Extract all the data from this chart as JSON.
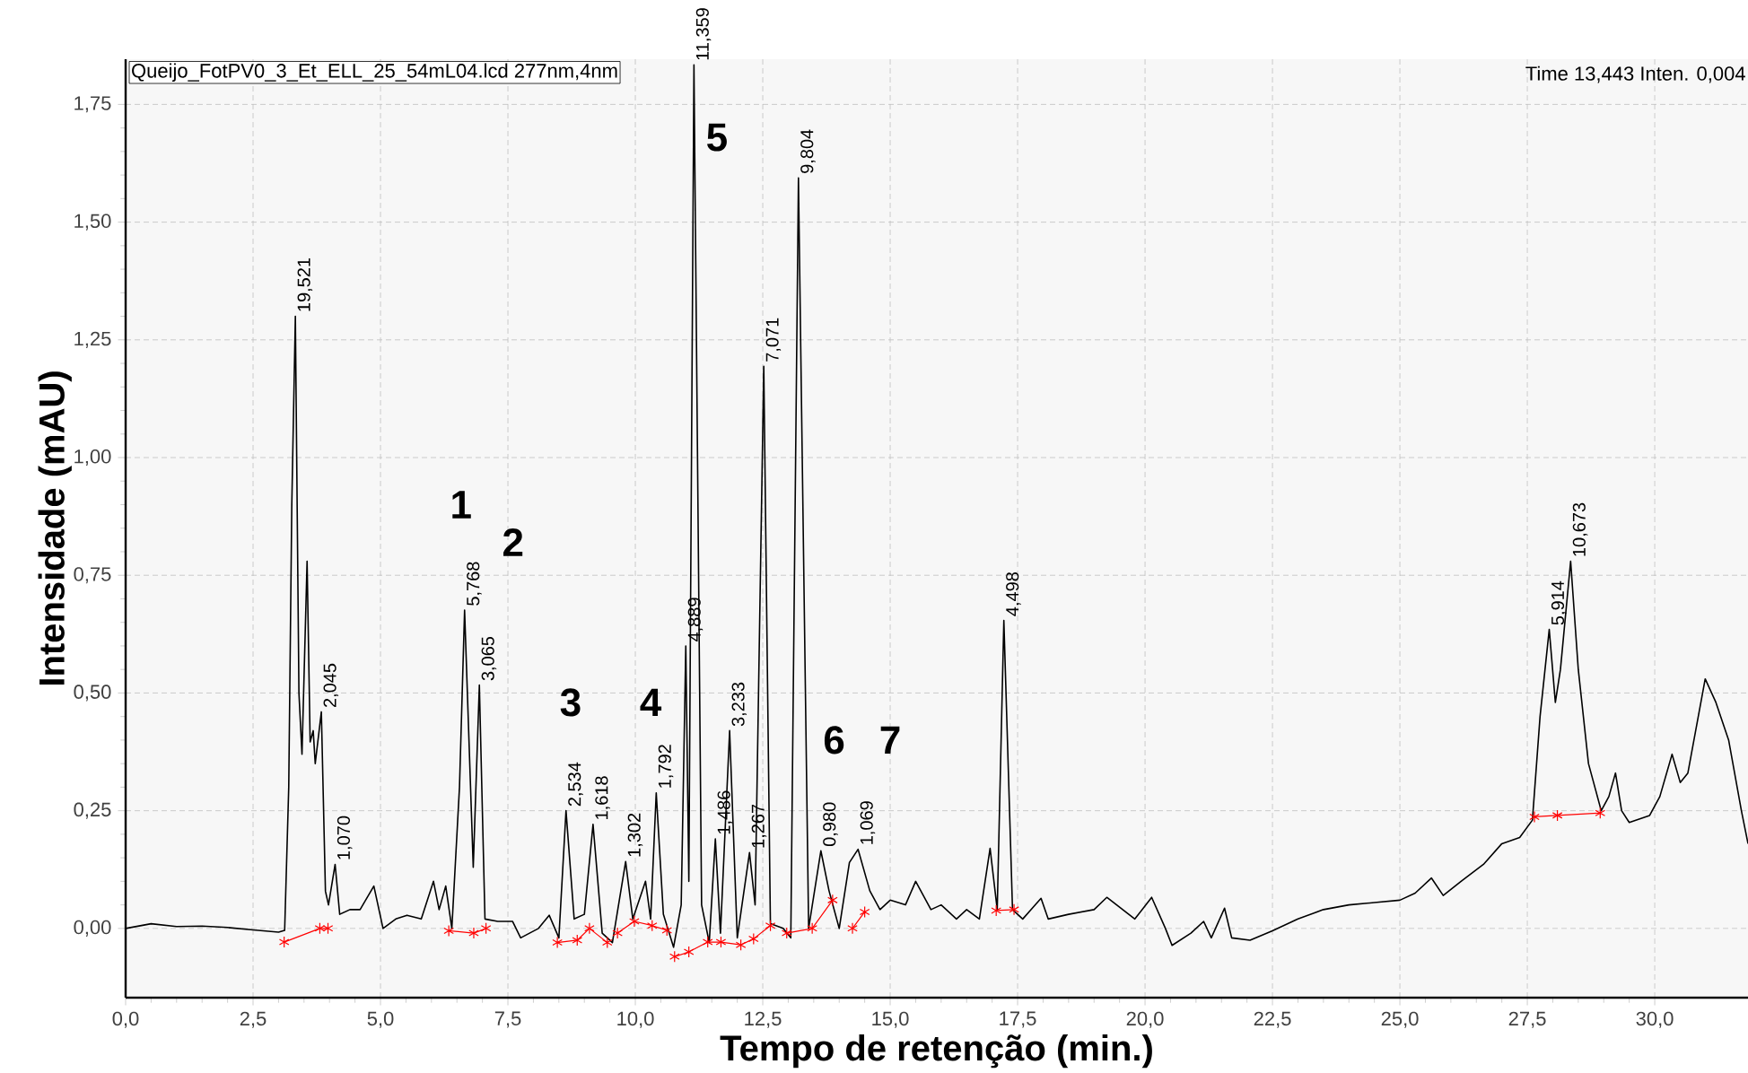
{
  "chart_data": {
    "type": "line",
    "xlabel": "Tempo de retenção (min.)",
    "ylabel": "Intensidade (mAU)",
    "xlim": [
      0,
      31.83
    ],
    "ylim": [
      -0.147,
      1.846
    ],
    "xticks": [
      {
        "value": 0,
        "label": "0,0"
      },
      {
        "value": 2.5,
        "label": "2,5"
      },
      {
        "value": 5,
        "label": "5,0"
      },
      {
        "value": 7.5,
        "label": "7,5"
      },
      {
        "value": 10,
        "label": "10,0"
      },
      {
        "value": 12.5,
        "label": "12,5"
      },
      {
        "value": 15,
        "label": "15,0"
      },
      {
        "value": 17.5,
        "label": "17,5"
      },
      {
        "value": 20,
        "label": "20,0"
      },
      {
        "value": 22.5,
        "label": "22,5"
      },
      {
        "value": 25,
        "label": "25,0"
      },
      {
        "value": 27.5,
        "label": "27,5"
      },
      {
        "value": 30,
        "label": "30,0"
      }
    ],
    "yticks": [
      {
        "value": 0,
        "label": "0,00"
      },
      {
        "value": 0.25,
        "label": "0,25"
      },
      {
        "value": 0.5,
        "label": "0,50"
      },
      {
        "value": 0.75,
        "label": "0,75"
      },
      {
        "value": 1,
        "label": "1,00"
      },
      {
        "value": 1.25,
        "label": "1,25"
      },
      {
        "value": 1.5,
        "label": "1,50"
      },
      {
        "value": 1.75,
        "label": "1,75"
      }
    ],
    "grid": true,
    "x": [
      0.0,
      0.5,
      1.0,
      1.5,
      2.0,
      2.5,
      3.0,
      3.12,
      3.2,
      3.26,
      3.33,
      3.4,
      3.46,
      3.56,
      3.62,
      3.68,
      3.72,
      3.84,
      3.92,
      3.98,
      4.11,
      4.2,
      4.4,
      4.6,
      4.87,
      5.05,
      5.3,
      5.52,
      5.8,
      6.04,
      6.15,
      6.28,
      6.4,
      6.55,
      6.65,
      6.82,
      6.94,
      7.05,
      7.3,
      7.59,
      7.75,
      8.1,
      8.31,
      8.5,
      8.64,
      8.8,
      9.0,
      9.17,
      9.35,
      9.55,
      9.81,
      9.95,
      10.2,
      10.3,
      10.41,
      10.55,
      10.75,
      10.9,
      10.99,
      11.05,
      11.15,
      11.3,
      11.45,
      11.57,
      11.67,
      11.85,
      12.0,
      12.24,
      12.35,
      12.52,
      12.65,
      12.9,
      13.05,
      13.2,
      13.4,
      13.64,
      13.8,
      14.0,
      14.2,
      14.37,
      14.6,
      14.8,
      15.0,
      15.3,
      15.5,
      15.8,
      16.0,
      16.3,
      16.5,
      16.75,
      16.96,
      17.1,
      17.23,
      17.4,
      17.6,
      17.96,
      18.1,
      18.5,
      19.0,
      19.25,
      19.8,
      20.13,
      20.4,
      20.53,
      20.9,
      21.15,
      21.3,
      21.56,
      21.7,
      22.06,
      22.5,
      23.0,
      23.5,
      24.0,
      24.5,
      25.0,
      25.3,
      25.62,
      25.85,
      26.2,
      26.64,
      27.0,
      27.35,
      27.6,
      27.75,
      27.93,
      28.05,
      28.15,
      28.35,
      28.5,
      28.7,
      28.95,
      29.1,
      29.23,
      29.35,
      29.5,
      29.9,
      30.1,
      30.34,
      30.5,
      30.65,
      30.99,
      31.2,
      31.45,
      31.7,
      31.83
    ],
    "series": [
      {
        "color": "#000000",
        "marker": "none",
        "values": [
          0.0,
          0.01,
          0.004,
          0.005,
          0.002,
          -0.003,
          -0.008,
          -0.004,
          0.3,
          0.9,
          1.3,
          0.5,
          0.37,
          0.78,
          0.396,
          0.42,
          0.35,
          0.46,
          0.079,
          0.05,
          0.136,
          0.03,
          0.04,
          0.04,
          0.09,
          0.0,
          0.02,
          0.028,
          0.02,
          0.1,
          0.04,
          0.09,
          0.0,
          0.3,
          0.676,
          0.13,
          0.517,
          0.02,
          0.015,
          0.015,
          -0.02,
          0.0,
          0.028,
          -0.02,
          0.25,
          0.02,
          0.03,
          0.221,
          -0.01,
          -0.03,
          0.142,
          0.02,
          0.1,
          0.02,
          0.288,
          0.03,
          -0.04,
          0.05,
          0.6,
          0.1,
          1.834,
          0.05,
          -0.03,
          0.19,
          -0.01,
          0.42,
          -0.02,
          0.161,
          0.05,
          1.194,
          0.01,
          0.0,
          -0.02,
          1.594,
          0.0,
          0.165,
          0.08,
          0.0,
          0.14,
          0.168,
          0.08,
          0.04,
          0.06,
          0.05,
          0.1,
          0.04,
          0.05,
          0.02,
          0.04,
          0.02,
          0.17,
          0.04,
          0.654,
          0.04,
          0.02,
          0.064,
          0.02,
          0.03,
          0.04,
          0.066,
          0.02,
          0.066,
          0.0,
          -0.036,
          -0.01,
          0.015,
          -0.02,
          0.043,
          -0.02,
          -0.025,
          -0.005,
          0.02,
          0.04,
          0.05,
          0.055,
          0.06,
          0.075,
          0.107,
          0.07,
          0.1,
          0.136,
          0.18,
          0.193,
          0.23,
          0.45,
          0.635,
          0.48,
          0.55,
          0.78,
          0.55,
          0.35,
          0.25,
          0.28,
          0.33,
          0.25,
          0.225,
          0.24,
          0.28,
          0.37,
          0.31,
          0.33,
          0.53,
          0.48,
          0.4,
          0.25,
          0.18
        ]
      },
      {
        "color": "#ff0000",
        "marker": "cross",
        "x": [
          3.11,
          3.81,
          3.97,
          5.0,
          6.34,
          6.83,
          7.07,
          8.0,
          8.47,
          8.86,
          9.1,
          9.45,
          9.55,
          9.65,
          9.98,
          10.33,
          10.62,
          10.7,
          10.77,
          11.05,
          11.42,
          11.68,
          12.07,
          12.32,
          12.65,
          12.8,
          12.97,
          13.47,
          13.87,
          14.0,
          14.26,
          14.5,
          16.0,
          17.08,
          17.43,
          20.0,
          27.64,
          28.09,
          28.93
        ],
        "values": [
          -0.029,
          0.0,
          0.0,
          null,
          -0.005,
          -0.01,
          0.0,
          null,
          -0.03,
          -0.025,
          0.0,
          -0.03,
          null,
          -0.01,
          0.015,
          0.006,
          -0.004,
          null,
          -0.06,
          -0.05,
          -0.029,
          -0.029,
          -0.035,
          -0.022,
          0.006,
          null,
          -0.01,
          0.0,
          0.06,
          null,
          0.0,
          0.035,
          null,
          0.038,
          0.04,
          null,
          0.237,
          0.24,
          0.245
        ]
      }
    ],
    "annotations": [
      "Queijo_FotPV0_3_Et_ELL_25_54mL04.lcd 277nm,4nm",
      "Time   13,443   Inten.   0,004",
      "1",
      "2",
      "3",
      "4",
      "5",
      "6",
      "7",
      {
        "text": "19,521",
        "x": 3.33,
        "y": 1.3
      },
      {
        "text": "2,045",
        "x": 3.84,
        "y": 0.46
      },
      {
        "text": "1,070",
        "x": 4.11,
        "y": 0.136
      },
      {
        "text": "5,768",
        "x": 6.65,
        "y": 0.676
      },
      {
        "text": "3,065",
        "x": 6.94,
        "y": 0.517
      },
      {
        "text": "2,534",
        "x": 8.64,
        "y": 0.25
      },
      {
        "text": "1,618",
        "x": 9.17,
        "y": 0.221
      },
      {
        "text": "1,302",
        "x": 9.81,
        "y": 0.142
      },
      {
        "text": "1,792",
        "x": 10.41,
        "y": 0.288
      },
      {
        "text": "4,889",
        "x": 10.99,
        "y": 0.6
      },
      {
        "text": "11,359",
        "x": 11.15,
        "y": 1.834
      },
      {
        "text": "1,486",
        "x": 11.57,
        "y": 0.19
      },
      {
        "text": "3,233",
        "x": 11.85,
        "y": 0.42
      },
      {
        "text": "1,267",
        "x": 12.24,
        "y": 0.161
      },
      {
        "text": "7,071",
        "x": 12.52,
        "y": 1.194
      },
      {
        "text": "9,804",
        "x": 13.2,
        "y": 1.594
      },
      {
        "text": "0,980",
        "x": 13.64,
        "y": 0.165
      },
      {
        "text": "1,069",
        "x": 14.37,
        "y": 0.168
      },
      {
        "text": "4,498",
        "x": 17.23,
        "y": 0.654
      },
      {
        "text": "5,914",
        "x": 27.93,
        "y": 0.635
      },
      {
        "text": "10,673",
        "x": 28.35,
        "y": 0.78
      }
    ]
  }
}
